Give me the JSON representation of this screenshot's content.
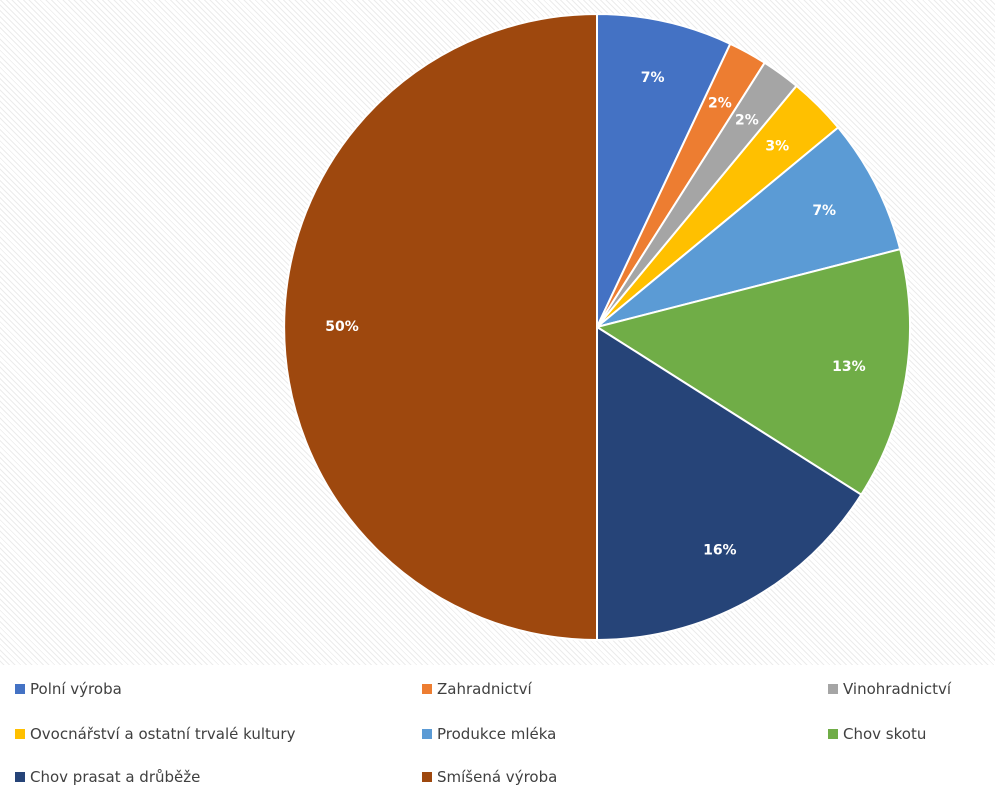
{
  "chart_data": {
    "type": "pie",
    "title": "",
    "categories": [
      "Polní výroba",
      "Zahradnictví",
      "Vinohradnictví",
      "Ovocnářství a ostatní trvalé kultury",
      "Produkce mléka",
      "Chov skotu",
      "Chov prasat a drůběže",
      "Smíšená výroba"
    ],
    "values": [
      7,
      2,
      2,
      3,
      7,
      13,
      16,
      50
    ],
    "labels": [
      "7%",
      "2%",
      "2%",
      "3%",
      "7%",
      "13%",
      "16%",
      "50%"
    ],
    "colors": [
      "#4472c4",
      "#ed7d31",
      "#a5a5a5",
      "#ffc000",
      "#5b9bd5",
      "#70ad47",
      "#264478",
      "#9e480e"
    ],
    "legend_position": "bottom"
  }
}
